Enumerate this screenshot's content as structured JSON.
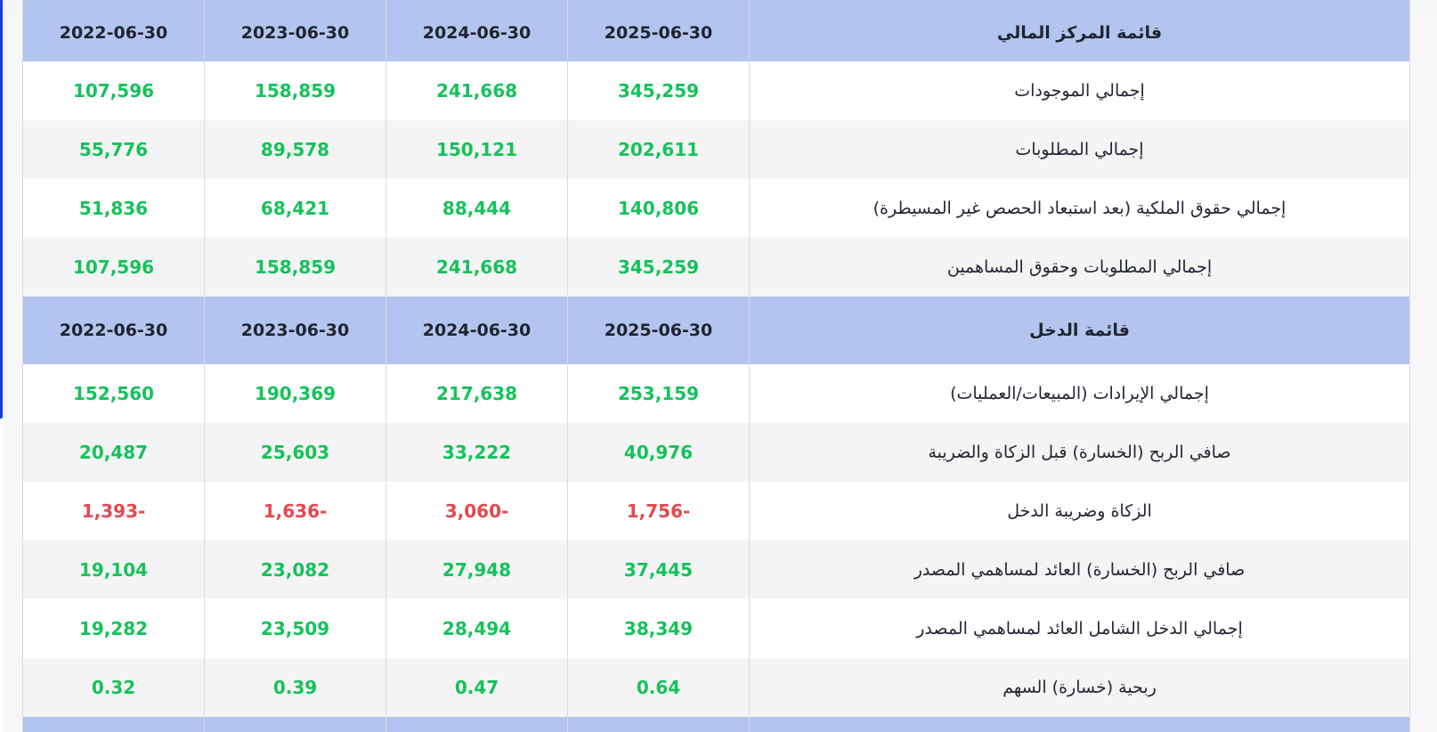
{
  "colors": {
    "header_bg": "#b3c5ee",
    "positive": "#15c25a",
    "negative": "#e5484d",
    "row_alt": "#f4f4f4",
    "accent": "#1a3be0"
  },
  "balance_sheet": {
    "title": "قائمة المركز المالي",
    "dates": [
      "2025-06-30",
      "2024-06-30",
      "2023-06-30",
      "2022-06-30"
    ],
    "rows": [
      {
        "label": "إجمالي الموجودات",
        "values": [
          "345,259",
          "241,668",
          "158,859",
          "107,596"
        ]
      },
      {
        "label": "إجمالي المطلوبات",
        "values": [
          "202,611",
          "150,121",
          "89,578",
          "55,776"
        ]
      },
      {
        "label": "إجمالي حقوق الملكية (بعد استبعاد الحصص غير المسيطرة)",
        "values": [
          "140,806",
          "88,444",
          "68,421",
          "51,836"
        ]
      },
      {
        "label": "إجمالي المطلوبات وحقوق المساهمين",
        "values": [
          "345,259",
          "241,668",
          "158,859",
          "107,596"
        ]
      }
    ]
  },
  "income_statement": {
    "title": "قائمة الدخل",
    "dates": [
      "2025-06-30",
      "2024-06-30",
      "2023-06-30",
      "2022-06-30"
    ],
    "rows": [
      {
        "label": "إجمالي الإيرادات (المبيعات/العمليات)",
        "values": [
          "253,159",
          "217,638",
          "190,369",
          "152,560"
        ]
      },
      {
        "label": "صافي الربح (الخسارة) قبل الزكاة والضريبة",
        "values": [
          "40,976",
          "33,222",
          "25,603",
          "20,487"
        ]
      },
      {
        "label": "الزكاة وضريبة الدخل",
        "values": [
          "1,756-",
          "3,060-",
          "1,636-",
          "1,393-"
        ]
      },
      {
        "label": "صافي الربح (الخسارة) العائد لمساهمي المصدر",
        "values": [
          "37,445",
          "27,948",
          "23,082",
          "19,104"
        ]
      },
      {
        "label": "إجمالي الدخل الشامل العائد لمساهمي المصدر",
        "values": [
          "38,349",
          "28,494",
          "23,509",
          "19,282"
        ]
      },
      {
        "label": "ربحية (خسارة) السهم",
        "values": [
          "0.64",
          "0.47",
          "0.39",
          "0.32"
        ]
      }
    ]
  }
}
